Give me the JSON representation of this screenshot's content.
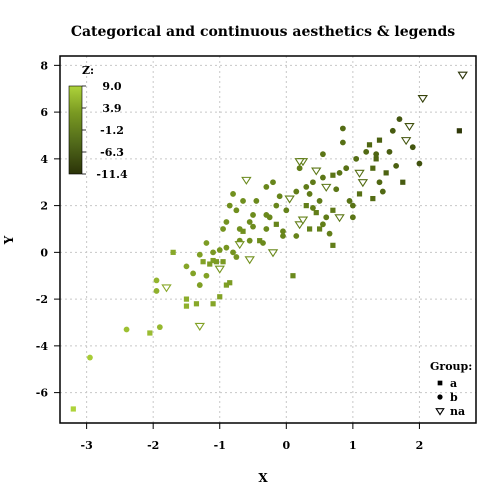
{
  "chart_data": {
    "type": "scatter",
    "title": "Categorical and continuous aesthetics & legends",
    "xlabel": "X",
    "ylabel": "Y",
    "xlim": [
      -3.4,
      2.85
    ],
    "ylim": [
      -7.3,
      8.4
    ],
    "xticks": [
      -3,
      -2,
      -1,
      0,
      1,
      2
    ],
    "yticks": [
      -6,
      -4,
      -2,
      0,
      2,
      4,
      6,
      8
    ],
    "grid": true,
    "color_legend": {
      "title": "Z:",
      "labels": [
        "9.0",
        "3.9",
        "-1.2",
        "-6.3",
        "-11.4"
      ],
      "range": [
        -11.4,
        9.0
      ],
      "colors": [
        "#2b3308",
        "#4f6612",
        "#6b8a1c",
        "#8aaa2a",
        "#aed33a"
      ],
      "placement": "top-left"
    },
    "shape_legend": {
      "title": "Group:",
      "entries": [
        {
          "label": "a",
          "shape": "square"
        },
        {
          "label": "b",
          "shape": "circle"
        },
        {
          "label": "na",
          "shape": "triangle-down"
        }
      ],
      "placement": "bottom-right"
    },
    "points": [
      [
        -3.2,
        -6.7,
        "a",
        -11.4
      ],
      [
        -2.95,
        -4.5,
        "b",
        -10.5
      ],
      [
        -2.4,
        -3.3,
        "b",
        -9.0
      ],
      [
        -2.05,
        -3.45,
        "a",
        -8.5
      ],
      [
        -1.95,
        -1.2,
        "b",
        -7.5
      ],
      [
        -1.95,
        -1.65,
        "b",
        -7.0
      ],
      [
        -1.9,
        -3.2,
        "b",
        -8.0
      ],
      [
        -1.8,
        -1.5,
        "na",
        -6.0
      ],
      [
        -1.7,
        0.0,
        "a",
        -6.0
      ],
      [
        -1.5,
        -2.0,
        "a",
        -6.5
      ],
      [
        -1.5,
        -2.3,
        "a",
        -7.0
      ],
      [
        -1.35,
        -2.2,
        "a",
        -6.0
      ],
      [
        -1.3,
        -3.15,
        "na",
        -5.0
      ],
      [
        -1.5,
        -0.6,
        "b",
        -5.5
      ],
      [
        -1.4,
        -0.9,
        "b",
        -5.0
      ],
      [
        -1.3,
        -1.4,
        "b",
        -4.5
      ],
      [
        -1.2,
        -1.0,
        "b",
        -5.0
      ],
      [
        -1.25,
        -0.4,
        "a",
        -5.0
      ],
      [
        -1.1,
        -0.35,
        "a",
        -4.5
      ],
      [
        -1.15,
        -0.5,
        "a",
        -4.0
      ],
      [
        -1.05,
        -0.4,
        "a",
        -3.8
      ],
      [
        -0.95,
        -0.4,
        "a",
        -3.8
      ],
      [
        -1.0,
        -0.7,
        "na",
        -3.0
      ],
      [
        -0.9,
        -1.4,
        "a",
        -4.5
      ],
      [
        -1.0,
        -1.9,
        "a",
        -5.0
      ],
      [
        -1.1,
        -2.2,
        "a",
        -5.5
      ],
      [
        -0.85,
        -1.3,
        "a",
        -4.0
      ],
      [
        -1.2,
        0.4,
        "b",
        -4.0
      ],
      [
        -1.1,
        0.0,
        "b",
        -3.5
      ],
      [
        -1.0,
        0.1,
        "b",
        -3.2
      ],
      [
        -0.9,
        0.2,
        "b",
        -3.0
      ],
      [
        -0.8,
        0.0,
        "b",
        -2.8
      ],
      [
        -0.95,
        1.0,
        "b",
        -2.8
      ],
      [
        -0.9,
        1.3,
        "b",
        -2.5
      ],
      [
        -0.85,
        2.0,
        "b",
        -2.0
      ],
      [
        -0.8,
        2.5,
        "b",
        -2.2
      ],
      [
        -0.75,
        1.8,
        "b",
        -2.0
      ],
      [
        -0.7,
        1.0,
        "b",
        -2.2
      ],
      [
        -0.7,
        0.5,
        "b",
        -2.5
      ],
      [
        -0.65,
        0.9,
        "a",
        -2.0
      ],
      [
        -0.6,
        3.1,
        "na",
        -1.0
      ],
      [
        -0.55,
        0.5,
        "b",
        -1.8
      ],
      [
        -0.5,
        1.1,
        "b",
        -1.5
      ],
      [
        -0.5,
        1.6,
        "b",
        -1.5
      ],
      [
        -0.45,
        2.2,
        "b",
        -1.2
      ],
      [
        -0.4,
        0.5,
        "a",
        -1.5
      ],
      [
        -0.35,
        0.4,
        "b",
        -1.2
      ],
      [
        -0.3,
        1.0,
        "b",
        -1.0
      ],
      [
        -0.3,
        2.8,
        "b",
        -0.8
      ],
      [
        -0.25,
        1.5,
        "b",
        -0.8
      ],
      [
        -0.2,
        3.0,
        "b",
        -0.5
      ],
      [
        -0.2,
        0.0,
        "na",
        -1.0
      ],
      [
        -0.15,
        2.0,
        "b",
        -0.5
      ],
      [
        -0.1,
        2.4,
        "b",
        -0.3
      ],
      [
        -0.15,
        1.2,
        "a",
        -0.5
      ],
      [
        -0.05,
        0.7,
        "b",
        -0.5
      ],
      [
        0.0,
        1.8,
        "b",
        0.0
      ],
      [
        0.05,
        2.3,
        "na",
        0.5
      ],
      [
        0.1,
        -1.0,
        "a",
        -1.0
      ],
      [
        0.15,
        0.7,
        "b",
        -0.2
      ],
      [
        0.2,
        1.2,
        "na",
        0.3
      ],
      [
        0.2,
        3.6,
        "b",
        0.5
      ],
      [
        0.25,
        3.9,
        "na",
        0.8
      ],
      [
        0.3,
        2.8,
        "b",
        0.8
      ],
      [
        0.3,
        2.0,
        "a",
        0.5
      ],
      [
        0.35,
        2.5,
        "b",
        1.0
      ],
      [
        0.35,
        1.0,
        "a",
        0.0
      ],
      [
        0.4,
        3.0,
        "b",
        1.0
      ],
      [
        0.45,
        1.7,
        "a",
        0.5
      ],
      [
        0.45,
        3.5,
        "na",
        1.5
      ],
      [
        0.5,
        1.0,
        "a",
        0.2
      ],
      [
        0.5,
        2.2,
        "b",
        1.0
      ],
      [
        0.55,
        3.2,
        "b",
        1.5
      ],
      [
        0.55,
        4.2,
        "b",
        1.8
      ],
      [
        0.6,
        1.5,
        "b",
        0.8
      ],
      [
        0.6,
        2.8,
        "na",
        1.5
      ],
      [
        0.65,
        0.8,
        "b",
        0.5
      ],
      [
        0.7,
        3.3,
        "a",
        1.8
      ],
      [
        0.7,
        1.8,
        "a",
        1.2
      ],
      [
        0.7,
        0.3,
        "a",
        0.5
      ],
      [
        0.75,
        2.7,
        "b",
        1.5
      ],
      [
        0.8,
        1.5,
        "na",
        1.5
      ],
      [
        0.8,
        3.4,
        "b",
        2.0
      ],
      [
        0.85,
        4.7,
        "b",
        2.5
      ],
      [
        0.85,
        5.3,
        "b",
        3.0
      ],
      [
        0.9,
        3.6,
        "b",
        2.3
      ],
      [
        0.95,
        2.2,
        "b",
        2.0
      ],
      [
        1.0,
        1.5,
        "b",
        1.8
      ],
      [
        1.0,
        2.0,
        "b",
        2.0
      ],
      [
        1.05,
        4.0,
        "b",
        2.8
      ],
      [
        1.1,
        3.4,
        "na",
        2.8
      ],
      [
        1.1,
        2.5,
        "a",
        2.5
      ],
      [
        1.15,
        3.0,
        "na",
        3.0
      ],
      [
        1.2,
        4.3,
        "b",
        3.5
      ],
      [
        1.25,
        4.6,
        "a",
        3.8
      ],
      [
        1.3,
        3.6,
        "a",
        3.5
      ],
      [
        1.3,
        2.3,
        "a",
        3.0
      ],
      [
        1.35,
        4.0,
        "a",
        4.0
      ],
      [
        1.4,
        3.0,
        "b",
        3.8
      ],
      [
        1.4,
        4.8,
        "a",
        4.5
      ],
      [
        1.45,
        2.6,
        "b",
        3.5
      ],
      [
        1.5,
        3.4,
        "a",
        4.2
      ],
      [
        1.55,
        4.3,
        "b",
        4.8
      ],
      [
        1.6,
        5.2,
        "b",
        5.0
      ],
      [
        1.65,
        3.7,
        "b",
        4.5
      ],
      [
        1.7,
        5.7,
        "b",
        5.5
      ],
      [
        1.75,
        3.0,
        "a",
        5.0
      ],
      [
        1.8,
        4.8,
        "na",
        5.5
      ],
      [
        1.85,
        5.4,
        "na",
        6.0
      ],
      [
        1.9,
        4.5,
        "b",
        5.5
      ],
      [
        2.0,
        3.8,
        "b",
        6.0
      ],
      [
        2.05,
        6.6,
        "na",
        7.5
      ],
      [
        2.6,
        5.2,
        "a",
        8.5
      ],
      [
        2.65,
        7.6,
        "na",
        9.0
      ],
      [
        0.2,
        3.9,
        "na",
        0.8
      ],
      [
        1.35,
        4.2,
        "b",
        4.0
      ],
      [
        -0.55,
        1.3,
        "b",
        -1.5
      ],
      [
        -0.65,
        2.2,
        "b",
        -1.8
      ],
      [
        -0.3,
        1.6,
        "b",
        -1.0
      ],
      [
        0.25,
        1.4,
        "na",
        0.0
      ],
      [
        0.4,
        1.9,
        "b",
        0.6
      ],
      [
        0.55,
        1.2,
        "b",
        0.5
      ],
      [
        0.15,
        2.6,
        "b",
        0.6
      ],
      [
        -0.05,
        0.9,
        "b",
        -0.4
      ],
      [
        -0.75,
        -0.2,
        "b",
        -3.0
      ],
      [
        -0.55,
        -0.3,
        "na",
        -2.5
      ],
      [
        -1.3,
        -0.1,
        "b",
        -4.5
      ],
      [
        -0.7,
        0.35,
        "na",
        -2.2
      ]
    ]
  }
}
